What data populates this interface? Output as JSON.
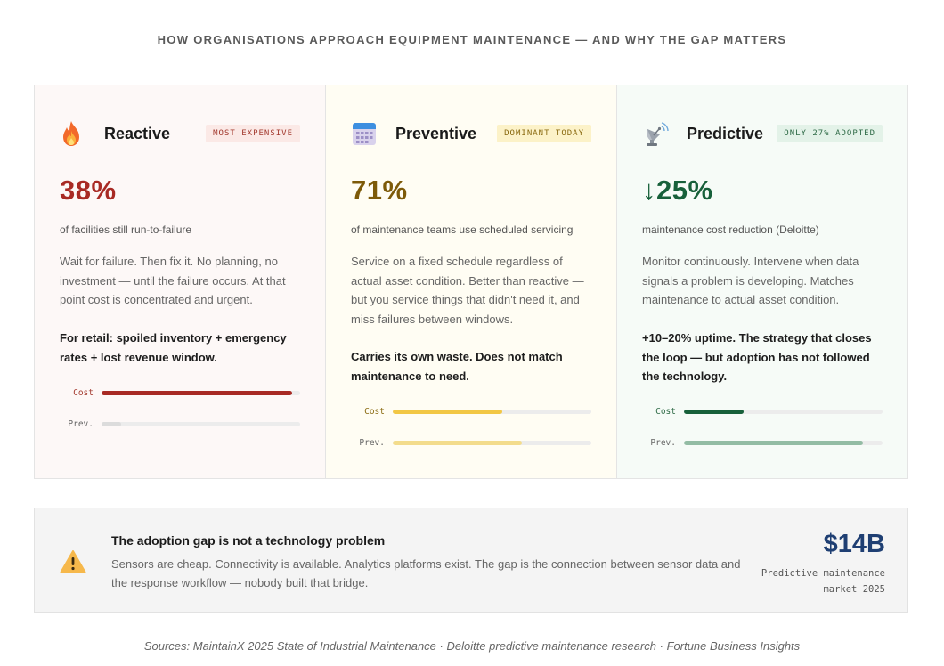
{
  "header": {
    "title": "HOW ORGANISATIONS APPROACH EQUIPMENT MAINTENANCE — AND WHY THE GAP MATTERS"
  },
  "cards": [
    {
      "id": "reactive",
      "name": "Reactive",
      "icon": "fire-icon",
      "badge": "MOST EXPENSIVE",
      "stat": "38%",
      "stat_sub": "of facilities still run-to-failure",
      "description": "Wait for failure. Then fix it. No planning, no investment — until the failure occurs. At that point cost is concentrated and urgent.",
      "emphasis": "For retail: spoiled inventory + emergency rates + lost revenue window.",
      "bars": [
        {
          "label": "Cost",
          "value": 0.96,
          "color": "#a82a24"
        },
        {
          "label": "Prev.",
          "value": 0.1,
          "color": "#dcdcdc"
        }
      ]
    },
    {
      "id": "preventive",
      "name": "Preventive",
      "icon": "calendar-icon",
      "badge": "DOMINANT TODAY",
      "stat": "71%",
      "stat_sub": "of maintenance teams use scheduled servicing",
      "description": "Service on a fixed schedule regardless of actual asset condition. Better than reactive — but you service things that didn't need it, and miss failures between windows.",
      "emphasis": "Carries its own waste. Does not match maintenance to need.",
      "bars": [
        {
          "label": "Cost",
          "value": 0.55,
          "color": "#f2c744"
        },
        {
          "label": "Prev.",
          "value": 0.65,
          "color": "#f3dc8c"
        }
      ]
    },
    {
      "id": "predictive",
      "name": "Predictive",
      "icon": "satellite-dish-icon",
      "badge": "ONLY 27% ADOPTED",
      "stat": "↓25%",
      "stat_sub": "maintenance cost reduction (Deloitte)",
      "description": "Monitor continuously. Intervene when data signals a problem is developing. Matches maintenance to actual asset condition.",
      "emphasis": "+10–20% uptime. The strategy that closes the loop — but adoption has not followed the technology.",
      "bars": [
        {
          "label": "Cost",
          "value": 0.3,
          "color": "#17603a"
        },
        {
          "label": "Prev.",
          "value": 0.9,
          "color": "#93bca4"
        }
      ]
    }
  ],
  "callout": {
    "icon": "warning-icon",
    "title": "The adoption gap is not a technology problem",
    "body": "Sensors are cheap. Connectivity is available. Analytics platforms exist. The gap is the connection between sensor data and the response workflow — nobody built that bridge.",
    "big_number": "$14B",
    "big_label": "Predictive maintenance market 2025"
  },
  "footer": {
    "sources": "Sources: MaintainX 2025 State of Industrial Maintenance · Deloitte predictive maintenance research · Fortune Business Insights"
  }
}
